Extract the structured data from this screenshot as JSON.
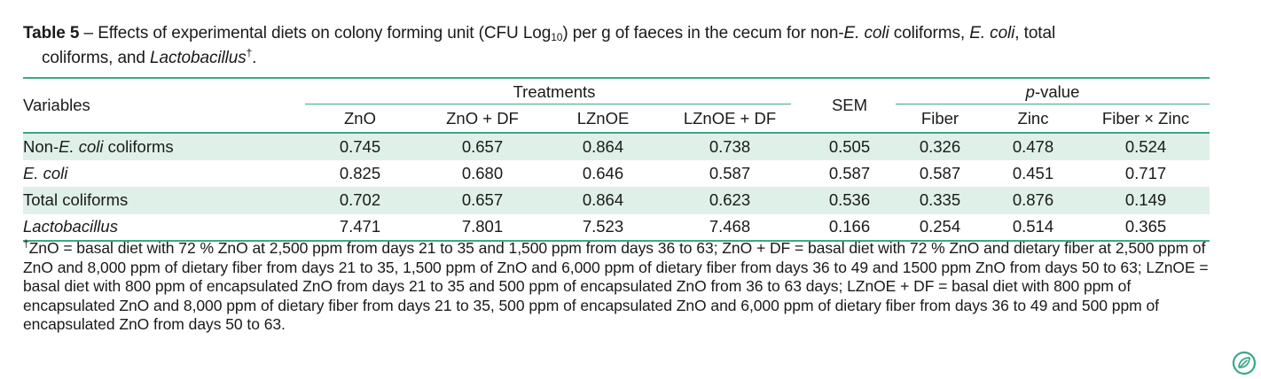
{
  "caption": {
    "label": "Table 5",
    "dash": " – ",
    "part1": "Effects of experimental diets on colony forming unit (CFU Log",
    "sub": "10",
    "part2": ") per g of faeces in the cecum for non-",
    "ecoli1": "E. coli",
    "part3": " coliforms, ",
    "ecoli2": "E. coli",
    "part4": ", total",
    "line2a": "coliforms, and ",
    "lacto": "Lactobacillus",
    "dagger": "†",
    "period": "."
  },
  "table": {
    "variables_header": "Variables",
    "treatments_header": "Treatments",
    "sem_header": "SEM",
    "pvalue_header_p": "p",
    "pvalue_header_rest": "-value",
    "treatment_cols": [
      "ZnO",
      "ZnO + DF",
      "LZnOE",
      "LZnOE + DF"
    ],
    "pvalue_cols": [
      "Fiber",
      "Zinc",
      "Fiber × Zinc"
    ],
    "rows": [
      {
        "pre": "Non-",
        "ital": "E. coli",
        "post": " coliforms",
        "values": [
          "0.745",
          "0.657",
          "0.864",
          "0.738",
          "0.505",
          "0.326",
          "0.478",
          "0.524"
        ]
      },
      {
        "pre": "",
        "ital": "E. coli",
        "post": "",
        "values": [
          "0.825",
          "0.680",
          "0.646",
          "0.587",
          "0.587",
          "0.587",
          "0.451",
          "0.717"
        ]
      },
      {
        "pre": "Total coliforms",
        "ital": "",
        "post": "",
        "values": [
          "0.702",
          "0.657",
          "0.864",
          "0.623",
          "0.536",
          "0.335",
          "0.876",
          "0.149"
        ]
      },
      {
        "pre": "",
        "ital": "Lactobacillus",
        "post": "",
        "values": [
          "7.471",
          "7.801",
          "7.523",
          "7.468",
          "0.166",
          "0.254",
          "0.514",
          "0.365"
        ]
      }
    ]
  },
  "footnote": {
    "dagger": "†",
    "text": "ZnO = basal diet with 72 % ZnO at 2,500 ppm from days 21 to 35 and 1,500 ppm from days 36 to 63; ZnO + DF = basal diet with 72 % ZnO and dietary fiber at 2,500 ppm of ZnO and 8,000 ppm of dietary fiber from days 21 to 35, 1,500 ppm of ZnO and 6,000 ppm of dietary fiber from days 36 to 49 and 1500 ppm ZnO from days 50 to 63; LZnOE = basal diet with 800 ppm of encapsulated ZnO from days 21 to 35 and 500 ppm of encapsulated ZnO from 36 to 63 days; LZnOE + DF = basal diet with 800 ppm of encapsulated ZnO and 8,000 ppm of dietary fiber from days 21 to 35, 500 ppm of encapsulated ZnO and 6,000 ppm of dietary fiber from days 36 to 49 and 500 ppm of encapsulated ZnO from days 50 to 63."
  },
  "colors": {
    "accent": "#3aa886",
    "row_shade": "#dff0e8"
  },
  "icons": {
    "corner_logo": "leaf-logo-icon"
  }
}
